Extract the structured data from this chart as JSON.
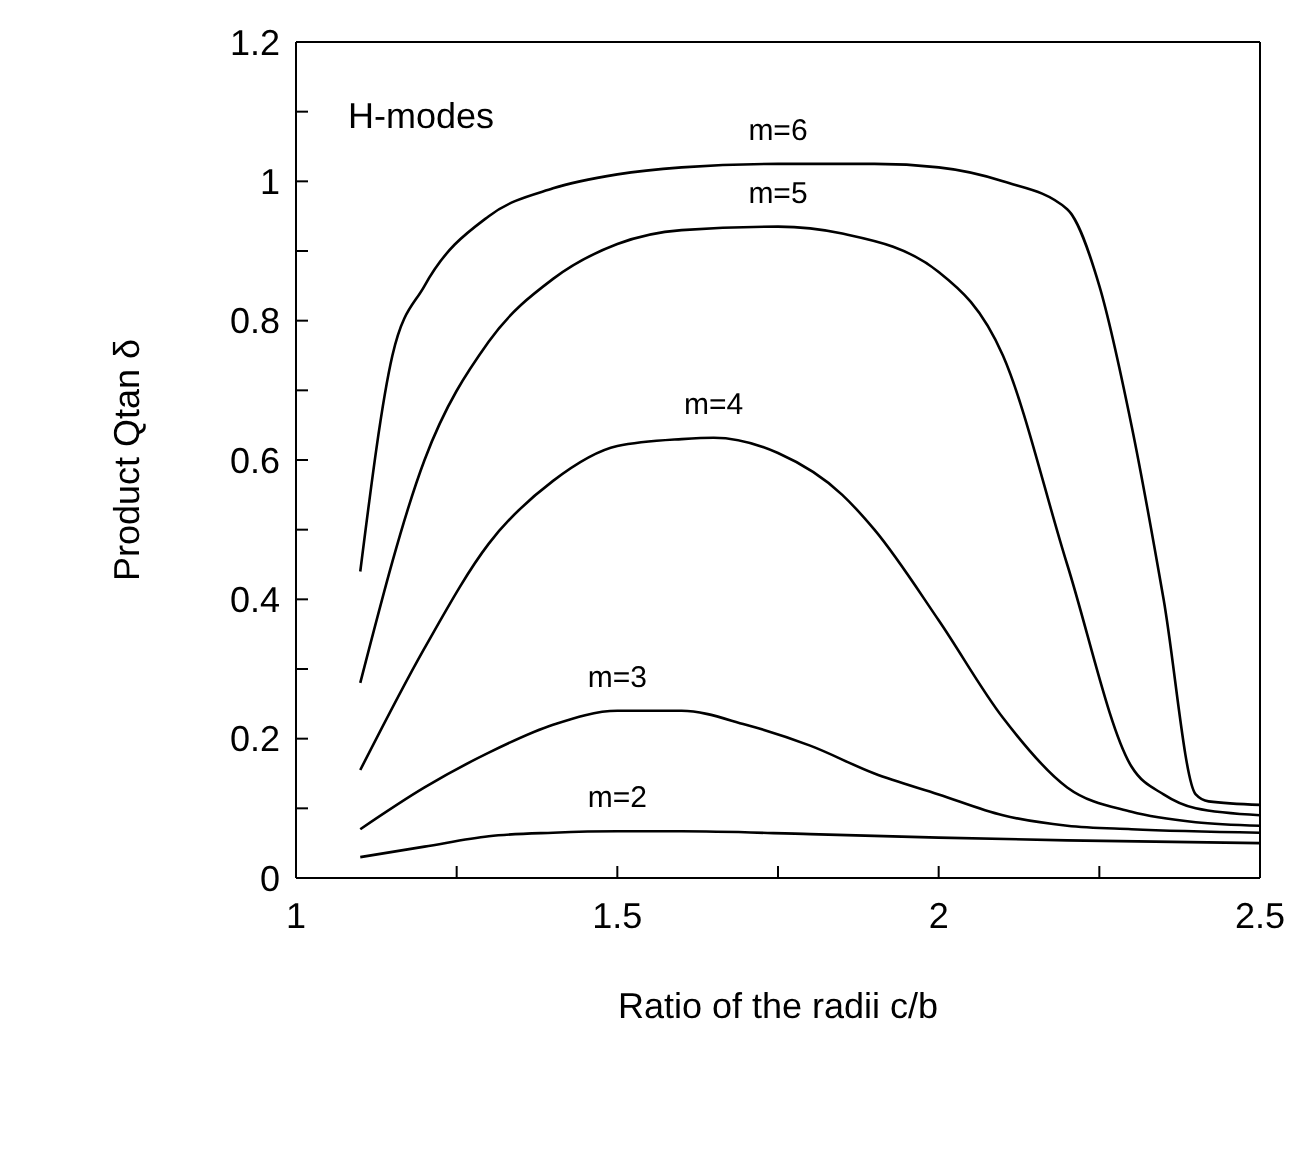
{
  "chart_data": {
    "type": "line",
    "xlabel": "Ratio of the radii c/b",
    "ylabel": "Product Qtan δ",
    "annotations": [
      "H-modes"
    ],
    "xlim": [
      1,
      2.5
    ],
    "xticks": [
      1,
      {
        "value": 1.25,
        "label": null
      },
      1.5,
      {
        "value": 1.75,
        "label": null
      },
      2,
      {
        "value": 2.25,
        "label": null
      },
      2.5
    ],
    "ylim": [
      0,
      1.2
    ],
    "yticks": [
      0,
      {
        "value": 0.1,
        "label": null
      },
      0.2,
      {
        "value": 0.3,
        "label": null
      },
      0.4,
      {
        "value": 0.5,
        "label": null
      },
      0.6,
      {
        "value": 0.7,
        "label": null
      },
      0.8,
      {
        "value": 0.9,
        "label": null
      },
      1,
      {
        "value": 1.1,
        "label": null
      },
      1.2
    ],
    "marker": "none",
    "line_style": "solid",
    "series": [
      {
        "name": "m=6",
        "color": "#000000",
        "x": [
          1.1,
          1.15,
          1.2,
          1.3,
          1.4,
          1.5,
          1.6,
          1.75,
          1.9,
          2.0,
          2.1,
          2.2,
          2.25,
          2.3,
          2.35,
          2.4,
          2.42,
          2.5
        ],
        "values": [
          0.44,
          0.75,
          0.85,
          0.95,
          0.99,
          1.01,
          1.02,
          1.025,
          1.025,
          1.02,
          1.0,
          0.96,
          0.85,
          0.65,
          0.4,
          0.12,
          0.11,
          0.105
        ]
      },
      {
        "name": "m=5",
        "color": "#000000",
        "x": [
          1.1,
          1.2,
          1.3,
          1.4,
          1.5,
          1.6,
          1.75,
          1.85,
          2.0,
          2.1,
          2.2,
          2.3,
          2.35,
          2.4,
          2.5
        ],
        "values": [
          0.28,
          0.6,
          0.77,
          0.86,
          0.91,
          0.93,
          0.935,
          0.925,
          0.87,
          0.75,
          0.45,
          0.16,
          0.12,
          0.1,
          0.09
        ]
      },
      {
        "name": "m=4",
        "color": "#000000",
        "x": [
          1.1,
          1.2,
          1.3,
          1.4,
          1.5,
          1.6,
          1.65,
          1.75,
          1.85,
          1.9,
          2.0,
          2.1,
          2.2,
          2.3,
          2.4,
          2.5
        ],
        "values": [
          0.155,
          0.33,
          0.48,
          0.57,
          0.62,
          0.63,
          0.632,
          0.61,
          0.55,
          0.5,
          0.37,
          0.23,
          0.13,
          0.095,
          0.08,
          0.075
        ]
      },
      {
        "name": "m=3",
        "color": "#000000",
        "x": [
          1.1,
          1.2,
          1.3,
          1.4,
          1.5,
          1.6,
          1.7,
          1.8,
          1.9,
          2.0,
          2.1,
          2.2,
          2.3,
          2.5
        ],
        "values": [
          0.07,
          0.13,
          0.18,
          0.22,
          0.24,
          0.24,
          0.22,
          0.19,
          0.15,
          0.12,
          0.09,
          0.075,
          0.07,
          0.065
        ]
      },
      {
        "name": "m=2",
        "color": "#000000",
        "x": [
          1.1,
          1.2,
          1.3,
          1.4,
          1.5,
          1.6,
          1.8,
          2.0,
          2.2,
          2.5
        ],
        "values": [
          0.03,
          0.045,
          0.06,
          0.065,
          0.067,
          0.067,
          0.063,
          0.058,
          0.054,
          0.05
        ]
      }
    ]
  }
}
